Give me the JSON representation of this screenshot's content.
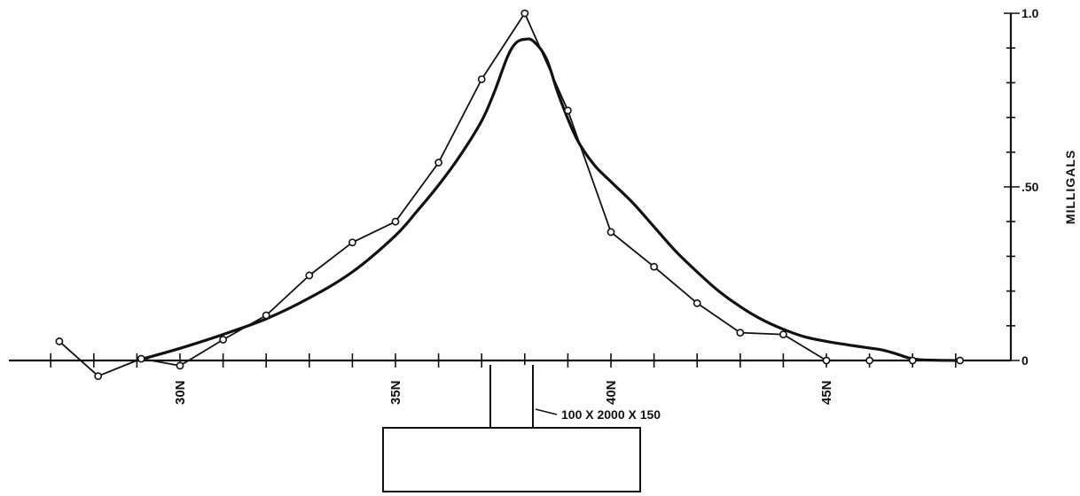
{
  "chart_data": {
    "type": "line",
    "title": "",
    "xlabel": "",
    "ylabel": "MILLIGALS",
    "xlim": [
      27.4,
      48.4
    ],
    "ylim": [
      0,
      1.0
    ],
    "x_ticks": [
      {
        "value": 30,
        "label": "30N"
      },
      {
        "value": 35,
        "label": "35N"
      },
      {
        "value": 40,
        "label": "40N"
      },
      {
        "value": 45,
        "label": "45N"
      }
    ],
    "y_ticks": [
      {
        "value": 0,
        "label": "0"
      },
      {
        "value": 0.5,
        "label": ".50"
      },
      {
        "value": 1.0,
        "label": "1.0"
      }
    ],
    "grid": false,
    "series": [
      {
        "style": "line-with-open-circles",
        "x": [
          27.2,
          28.1,
          29.1,
          30.0,
          31.0,
          32.0,
          33.0,
          34.0,
          35.0,
          36.0,
          37.0,
          38.0,
          39.0,
          40.0,
          41.0,
          42.0,
          43.0,
          44.0,
          45.0,
          46.0,
          47.0,
          48.1
        ],
        "y": [
          0.055,
          -0.045,
          0.005,
          -0.015,
          0.06,
          0.13,
          0.245,
          0.34,
          0.4,
          0.57,
          0.81,
          1.0,
          0.72,
          0.37,
          0.27,
          0.165,
          0.08,
          0.075,
          0.0,
          0.0,
          0.0,
          0.0
        ]
      },
      {
        "style": "smooth-heavy",
        "x": [
          29.0,
          30.0,
          31.0,
          32.0,
          33.0,
          34.0,
          35.0,
          35.5,
          36.0,
          36.5,
          37.0,
          37.3,
          37.6,
          37.8,
          38.0,
          38.2,
          38.5,
          38.8,
          39.2,
          39.6,
          40.0,
          40.5,
          41.0,
          41.5,
          42.0,
          42.5,
          43.0,
          43.5,
          44.0,
          44.5,
          45.0,
          45.5,
          46.0,
          46.3,
          46.6,
          46.9,
          47.2,
          48.0
        ],
        "y": [
          0.0,
          0.035,
          0.075,
          0.12,
          0.18,
          0.255,
          0.36,
          0.43,
          0.505,
          0.59,
          0.69,
          0.775,
          0.875,
          0.915,
          0.925,
          0.92,
          0.87,
          0.76,
          0.64,
          0.565,
          0.515,
          0.455,
          0.385,
          0.315,
          0.255,
          0.2,
          0.155,
          0.118,
          0.09,
          0.068,
          0.055,
          0.045,
          0.036,
          0.03,
          0.02,
          0.008,
          0.002,
          0.0
        ]
      }
    ],
    "annotations": [
      {
        "text": "100 X 2000 X 150"
      }
    ]
  }
}
